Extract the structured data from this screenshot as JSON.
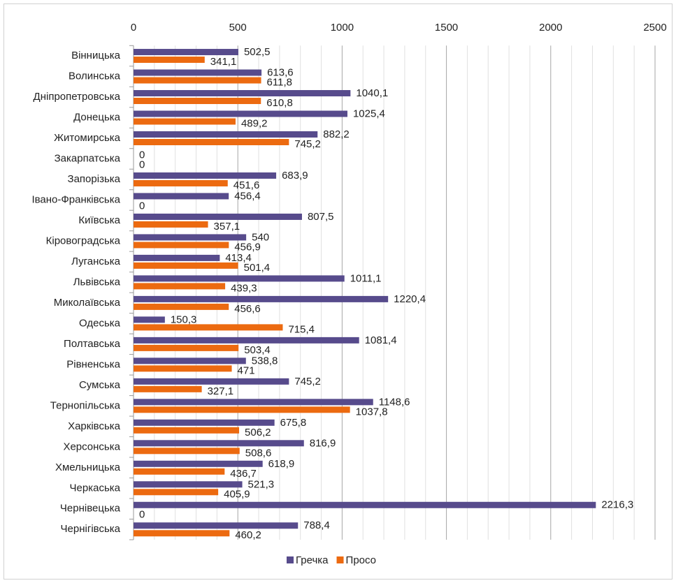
{
  "chart_data": {
    "type": "hbar",
    "categories": [
      "Вінницька",
      "Волинська",
      "Дніпропетровська",
      "Донецька",
      "Житомирська",
      "Закарпатська",
      "Запорізька",
      "Івано-Франківська",
      "Київська",
      "Кіровоградська",
      "Луганська",
      "Львівська",
      "Миколаївська",
      "Одеська",
      "Полтавська",
      "Рівненська",
      "Сумська",
      "Тернопільська",
      "Харківська",
      "Херсонська",
      "Хмельницька",
      "Черкаська",
      "Чернівецька",
      "Чернігівська"
    ],
    "series": [
      {
        "name": "Гречка",
        "color": "#574b8c",
        "values": [
          502.5,
          613.6,
          1040.1,
          1025.4,
          882.2,
          0,
          683.9,
          456.4,
          807.5,
          540,
          413.4,
          1011.1,
          1220.4,
          150.3,
          1081.4,
          538.8,
          745.2,
          1148.6,
          675.8,
          816.9,
          618.9,
          521.3,
          2216.3,
          788.4
        ],
        "value_labels": [
          "502,5",
          "613,6",
          "1040,1",
          "1025,4",
          "882,2",
          "0",
          "683,9",
          "456,4",
          "807,5",
          "540",
          "413,4",
          "1011,1",
          "1220,4",
          "150,3",
          "1081,4",
          "538,8",
          "745,2",
          "1148,6",
          "675,8",
          "816,9",
          "618,9",
          "521,3",
          "2216,3",
          "788,4"
        ]
      },
      {
        "name": "Просо",
        "color": "#ec6a10",
        "values": [
          341.1,
          611.8,
          610.8,
          489.2,
          745.2,
          0,
          451.6,
          0,
          357.1,
          456.9,
          501.4,
          439.3,
          456.6,
          715.4,
          503.4,
          471,
          327.1,
          1037.8,
          506.2,
          508.6,
          436.7,
          405.9,
          0,
          460.2
        ],
        "value_labels": [
          "341,1",
          "611,8",
          "610,8",
          "489,2",
          "745,2",
          "0",
          "451,6",
          "0",
          "357,1",
          "456,9",
          "501,4",
          "439,3",
          "456,6",
          "715,4",
          "503,4",
          "471",
          "327,1",
          "1037,8",
          "506,2",
          "508,6",
          "436,7",
          "405,9",
          "0",
          "460,2"
        ]
      }
    ],
    "xlim": [
      0,
      2500
    ],
    "xticks": [
      0,
      500,
      1000,
      1500,
      2000,
      2500
    ],
    "xminorticks": [
      100,
      200,
      300,
      400,
      600,
      700,
      800,
      900,
      1100,
      1200,
      1300,
      1400,
      1600,
      1700,
      1800,
      1900,
      2100,
      2200,
      2300,
      2400
    ],
    "grid": true,
    "legend": "bottom"
  }
}
